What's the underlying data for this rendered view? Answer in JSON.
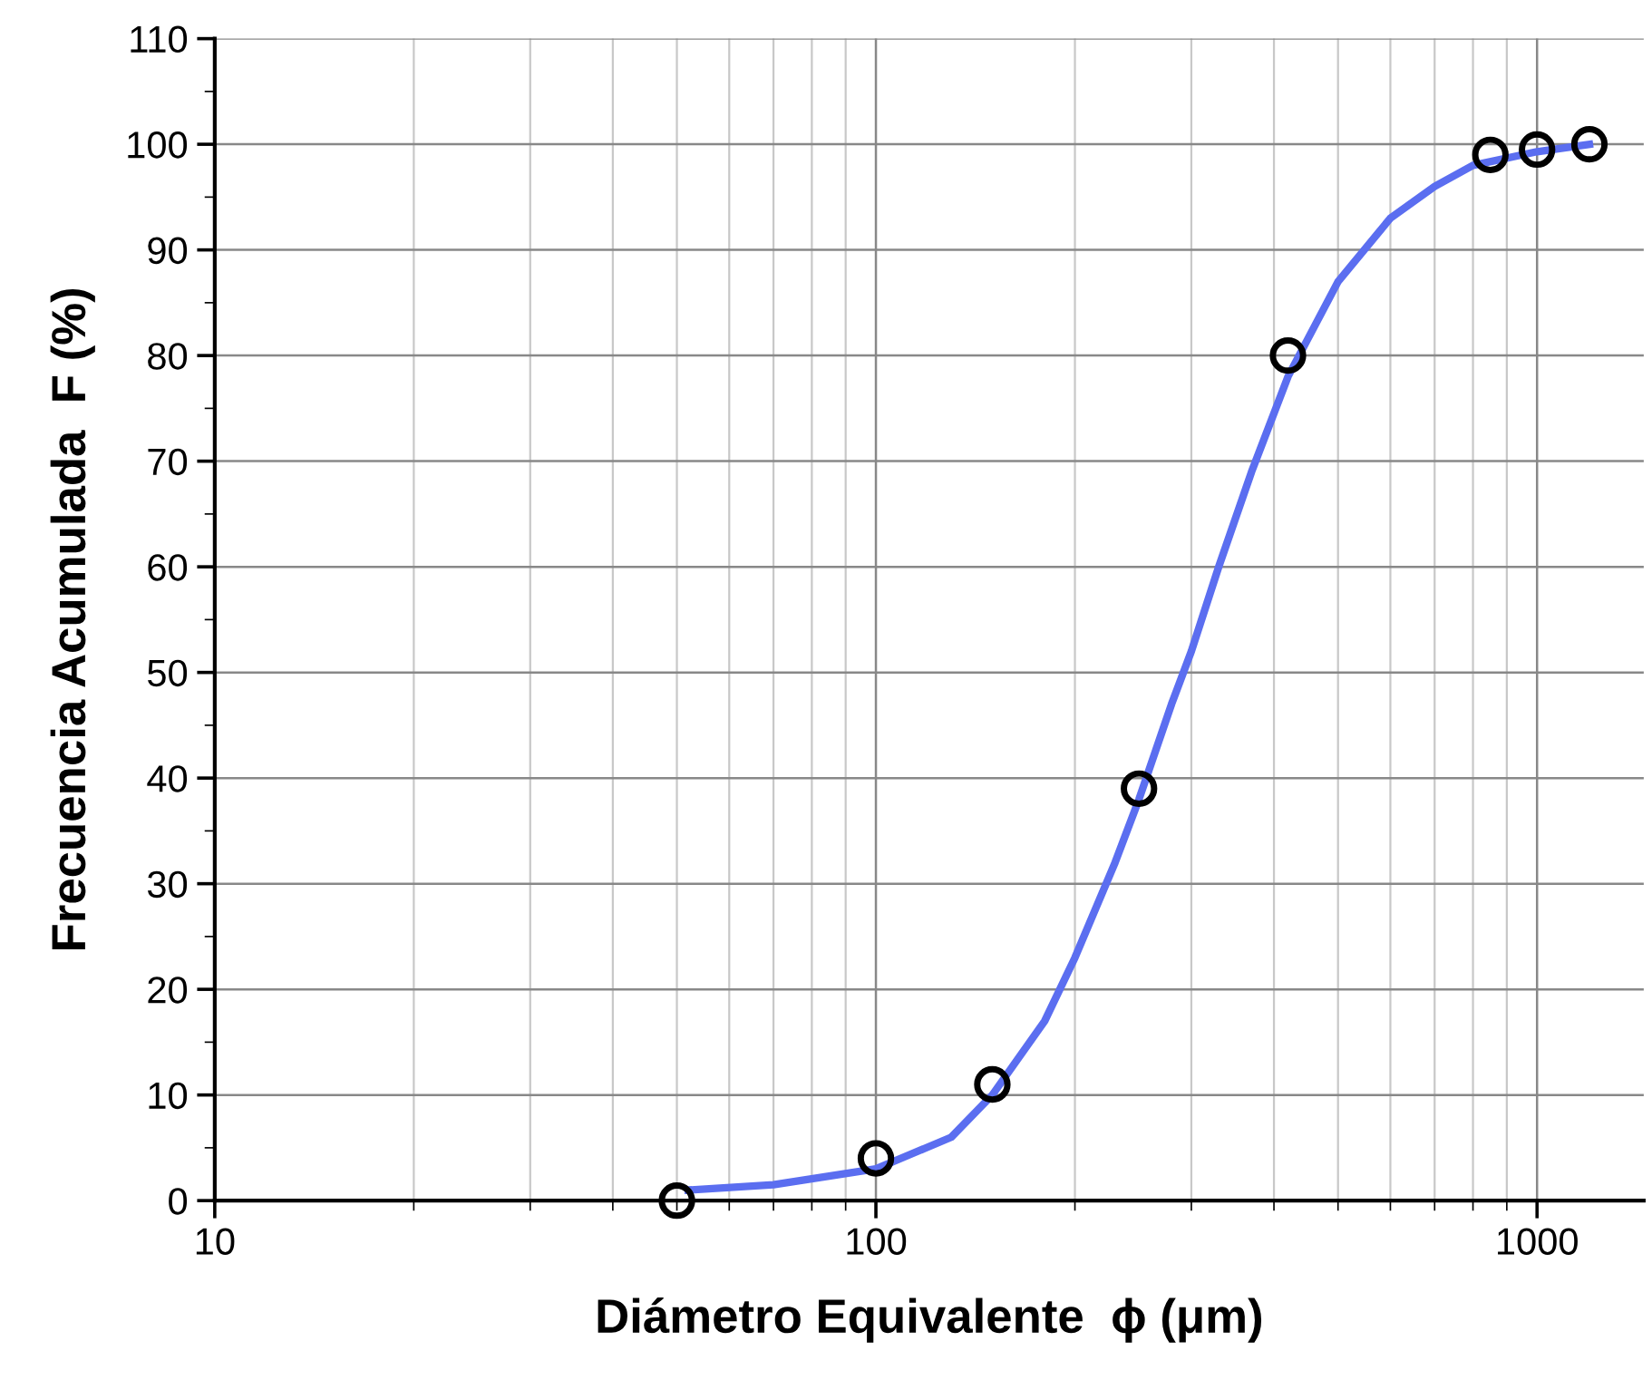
{
  "chart_data": {
    "type": "scatter",
    "xlabel": "Diámetro Equivalente  ϕ (μm)",
    "ylabel": "Frecuencia Acumulada  F (%)",
    "log": "x",
    "xlim": [
      10,
      1450
    ],
    "xticks": [
      10,
      100,
      1000
    ],
    "ylim": [
      0,
      110
    ],
    "yticks": [
      0,
      10,
      20,
      30,
      40,
      50,
      60,
      70,
      80,
      90,
      100,
      110
    ],
    "grid": true,
    "marker": "circle",
    "series": [
      {
        "color": "#000000",
        "x": [
          50,
          100,
          150,
          250,
          420,
          850,
          1000,
          1200
        ],
        "values": [
          0,
          4,
          11,
          39,
          80,
          99,
          99.5,
          100
        ]
      },
      {
        "type": "line",
        "color": "#5b6ef0",
        "line_style": "solid",
        "marker": "none",
        "x": [
          52,
          70,
          100,
          130,
          150,
          180,
          200,
          230,
          250,
          280,
          300,
          330,
          370,
          420,
          500,
          600,
          700,
          800,
          1000,
          1200
        ],
        "values": [
          1,
          1.5,
          3,
          6,
          10,
          17,
          23,
          32,
          38,
          47,
          52,
          60,
          69,
          78,
          87,
          93,
          96,
          98,
          99.3,
          100
        ]
      }
    ]
  }
}
